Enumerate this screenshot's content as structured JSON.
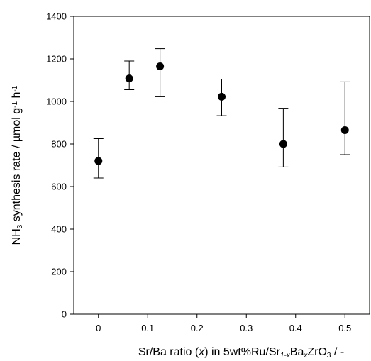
{
  "chart_data": {
    "type": "scatter",
    "title": "",
    "xlabel": {
      "parts": [
        {
          "text": "Sr/Ba ratio (",
          "style": "normal"
        },
        {
          "text": "x",
          "style": "italic"
        },
        {
          "text": ") in 5wt%Ru/Sr",
          "style": "normal"
        },
        {
          "text": "1-x",
          "style": "sub-italic"
        },
        {
          "text": "Ba",
          "style": "normal"
        },
        {
          "text": "x",
          "style": "sub-italic"
        },
        {
          "text": "ZrO",
          "style": "normal"
        },
        {
          "text": "3",
          "style": "sub"
        },
        {
          "text": " / -",
          "style": "normal"
        }
      ]
    },
    "ylabel": {
      "parts": [
        {
          "text": "NH",
          "style": "normal"
        },
        {
          "text": "3",
          "style": "sub"
        },
        {
          "text": " synthesis rate / µmol g",
          "style": "normal"
        },
        {
          "text": "-1",
          "style": "sup"
        },
        {
          "text": " h",
          "style": "normal"
        },
        {
          "text": "-1",
          "style": "sup"
        }
      ]
    },
    "xlim": [
      -0.05,
      0.55
    ],
    "ylim": [
      0,
      1400
    ],
    "xticks": [
      "0",
      "0.1",
      "0.2",
      "0.3",
      "0.4",
      "0.5"
    ],
    "xtick_values": [
      0,
      0.1,
      0.2,
      0.3,
      0.4,
      0.5
    ],
    "yticks": [
      "0",
      "200",
      "400",
      "600",
      "800",
      "1000",
      "1200",
      "1400"
    ],
    "ytick_values": [
      0,
      200,
      400,
      600,
      800,
      1000,
      1200,
      1400
    ],
    "grid": false,
    "points": [
      {
        "x": 0,
        "y": 720,
        "err_low": 640,
        "err_high": 825
      },
      {
        "x": 0.0625,
        "y": 1108,
        "err_low": 1055,
        "err_high": 1190
      },
      {
        "x": 0.125,
        "y": 1165,
        "err_low": 1022,
        "err_high": 1248
      },
      {
        "x": 0.25,
        "y": 1022,
        "err_low": 933,
        "err_high": 1105
      },
      {
        "x": 0.375,
        "y": 800,
        "err_low": 692,
        "err_high": 968
      },
      {
        "x": 0.5,
        "y": 865,
        "err_low": 750,
        "err_high": 1092
      }
    ],
    "marker_color": "#000000"
  }
}
